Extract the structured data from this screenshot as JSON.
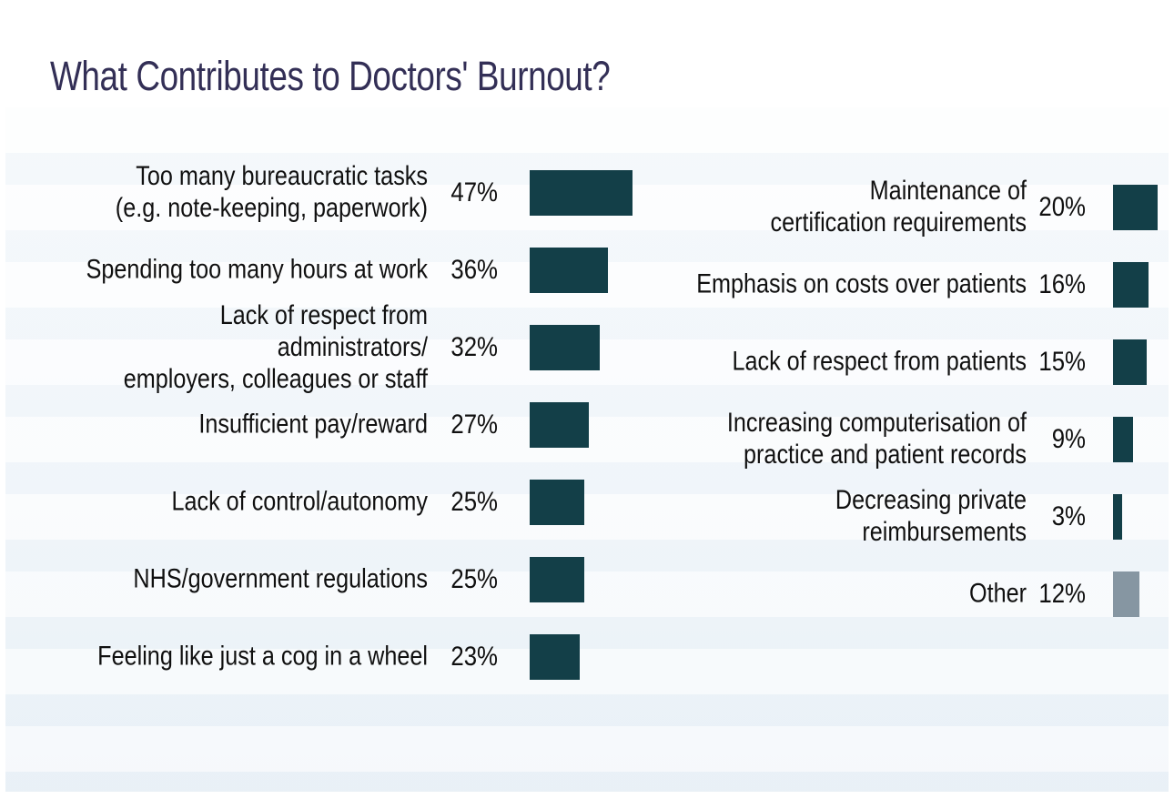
{
  "title": "What Contributes to Doctors' Burnout?",
  "chart_data": {
    "type": "bar",
    "orientation": "horizontal",
    "title": "What Contributes to Doctors' Burnout?",
    "value_suffix": "%",
    "xlim": [
      0,
      50
    ],
    "grid": false,
    "legend": false,
    "colors": {
      "bar": "#133f48",
      "bar_other": "#8696a2",
      "title_text": "#332f56",
      "label_text": "#101010",
      "panel_background": "#f3f7fb"
    },
    "groups": [
      {
        "side": "left",
        "items": [
          {
            "label": "Too many bureaucratic tasks\n(e.g. note-keeping, paperwork)",
            "value": 47
          },
          {
            "label": "Spending too many hours at work",
            "value": 36
          },
          {
            "label": "Lack of respect from administrators/\nemployers, colleagues or staff",
            "value": 32
          },
          {
            "label": "Insufficient pay/reward",
            "value": 27
          },
          {
            "label": "Lack of control/autonomy",
            "value": 25
          },
          {
            "label": "NHS/government regulations",
            "value": 25
          },
          {
            "label": "Feeling like just a cog in a wheel",
            "value": 23
          }
        ]
      },
      {
        "side": "right",
        "items": [
          {
            "label": "Maintenance of\ncertification requirements",
            "value": 20
          },
          {
            "label": "Emphasis on costs over patients",
            "value": 16
          },
          {
            "label": "Lack of respect from patients",
            "value": 15
          },
          {
            "label": "Increasing computerisation of\npractice and patient records",
            "value": 9
          },
          {
            "label": "Decreasing private reimbursements",
            "value": 3
          },
          {
            "label": "Other",
            "value": 12,
            "muted": true
          }
        ]
      }
    ]
  }
}
